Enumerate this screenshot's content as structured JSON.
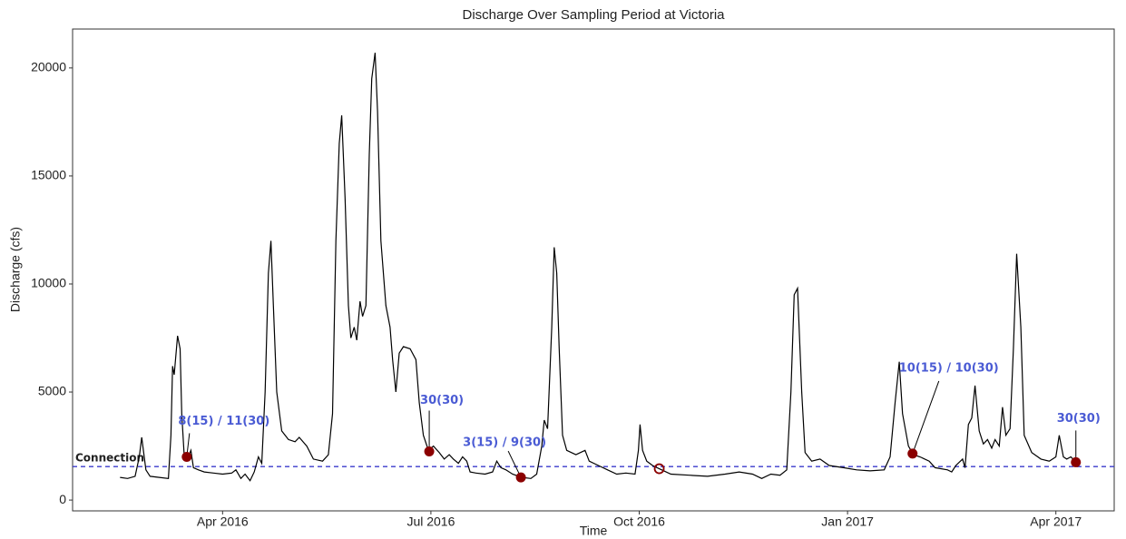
{
  "chart_data": {
    "type": "line",
    "title": "Discharge Over Sampling Period at Victoria",
    "x_label": "Time",
    "y_label": "Discharge (cfs)",
    "xlim": [
      2016.07,
      2017.32
    ],
    "ylim": [
      -500,
      21800
    ],
    "xticks": [
      {
        "value": 2016.25,
        "label": "Apr 2016"
      },
      {
        "value": 2016.5,
        "label": "Jul 2016"
      },
      {
        "value": 2016.75,
        "label": "Oct 2016"
      },
      {
        "value": 2017.0,
        "label": "Jan 2017"
      },
      {
        "value": 2017.25,
        "label": "Apr 2017"
      }
    ],
    "yticks": [
      0,
      5000,
      10000,
      15000,
      20000
    ],
    "grid": false,
    "series": [
      {
        "color": "#000000",
        "x": [
          2016.127,
          2016.136,
          2016.145,
          2016.15,
          2016.153,
          2016.158,
          2016.163,
          2016.174,
          2016.185,
          2016.188,
          2016.19,
          2016.192,
          2016.196,
          2016.199,
          2016.201,
          2016.204,
          2016.208,
          2016.212,
          2016.215,
          2016.221,
          2016.228,
          2016.239,
          2016.25,
          2016.261,
          2016.266,
          2016.272,
          2016.277,
          2016.283,
          2016.288,
          2016.293,
          2016.297,
          2016.301,
          2016.305,
          2016.308,
          2016.311,
          2016.315,
          2016.321,
          2016.329,
          2016.337,
          2016.342,
          2016.351,
          2016.359,
          2016.37,
          2016.377,
          2016.382,
          2016.386,
          2016.39,
          2016.393,
          2016.397,
          2016.401,
          2016.404,
          2016.408,
          2016.411,
          2016.415,
          2016.418,
          2016.422,
          2016.426,
          2016.429,
          2016.433,
          2016.436,
          2016.44,
          2016.446,
          2016.451,
          2016.454,
          2016.458,
          2016.462,
          2016.467,
          2016.475,
          2016.482,
          2016.486,
          2016.491,
          2016.497,
          2016.503,
          2016.51,
          2016.516,
          2016.522,
          2016.527,
          2016.533,
          2016.538,
          2016.543,
          2016.547,
          2016.554,
          2016.565,
          2016.574,
          2016.579,
          2016.584,
          2016.59,
          2016.598,
          2016.609,
          2016.62,
          2016.627,
          2016.633,
          2016.636,
          2016.64,
          2016.645,
          2016.648,
          2016.651,
          2016.654,
          2016.658,
          2016.663,
          2016.674,
          2016.685,
          2016.69,
          2016.701,
          2016.712,
          2016.723,
          2016.734,
          2016.745,
          2016.749,
          2016.751,
          2016.754,
          2016.759,
          2016.766,
          2016.774,
          2016.788,
          2016.81,
          2016.832,
          2016.853,
          2016.87,
          2016.886,
          2016.897,
          2016.908,
          2016.919,
          2016.927,
          2016.932,
          2016.936,
          2016.94,
          2016.945,
          2016.949,
          2016.957,
          2016.967,
          2016.978,
          2016.995,
          2017.011,
          2017.027,
          2017.044,
          2017.051,
          2017.057,
          2017.062,
          2017.066,
          2017.073,
          2017.079,
          2017.087,
          2017.098,
          2017.105,
          2017.12,
          2017.125,
          2017.13,
          2017.138,
          2017.141,
          2017.145,
          2017.149,
          2017.153,
          2017.158,
          2017.163,
          2017.168,
          2017.173,
          2017.177,
          2017.182,
          2017.186,
          2017.19,
          2017.195,
          2017.199,
          2017.203,
          2017.208,
          2017.212,
          2017.221,
          2017.232,
          2017.242,
          2017.25,
          2017.254,
          2017.259,
          2017.263,
          2017.268,
          2017.273,
          2017.276
        ],
        "values": [
          1050,
          1000,
          1100,
          2000,
          2900,
          1400,
          1100,
          1050,
          1000,
          3000,
          6200,
          5800,
          7600,
          7000,
          4000,
          2000,
          1900,
          2300,
          1500,
          1400,
          1300,
          1250,
          1200,
          1250,
          1400,
          1000,
          1200,
          900,
          1300,
          2000,
          1700,
          5000,
          10500,
          12000,
          9000,
          5000,
          3200,
          2800,
          2700,
          2900,
          2500,
          1900,
          1800,
          2100,
          4000,
          12000,
          16500,
          17800,
          14000,
          9000,
          7500,
          8000,
          7400,
          9200,
          8500,
          9000,
          16000,
          19500,
          20700,
          18000,
          12000,
          9000,
          8000,
          6500,
          5000,
          6800,
          7100,
          7000,
          6500,
          4500,
          3000,
          2300,
          2500,
          2200,
          1900,
          2100,
          1900,
          1700,
          2000,
          1800,
          1300,
          1250,
          1200,
          1300,
          1800,
          1500,
          1400,
          1200,
          1050,
          1000,
          1200,
          2500,
          3700,
          3300,
          8000,
          11700,
          10500,
          7000,
          3000,
          2300,
          2100,
          2300,
          1800,
          1600,
          1400,
          1200,
          1250,
          1200,
          2300,
          3500,
          2300,
          1800,
          1600,
          1450,
          1200,
          1150,
          1100,
          1200,
          1300,
          1200,
          1000,
          1200,
          1150,
          1400,
          5000,
          9500,
          9800,
          5000,
          2200,
          1800,
          1900,
          1600,
          1500,
          1400,
          1350,
          1400,
          2000,
          4500,
          6400,
          4000,
          2500,
          2100,
          2000,
          1800,
          1500,
          1400,
          1300,
          1600,
          1900,
          1500,
          3500,
          3800,
          5300,
          3200,
          2600,
          2800,
          2400,
          2800,
          2500,
          4300,
          3000,
          3300,
          7000,
          11400,
          8000,
          3000,
          2200,
          1900,
          1800,
          2000,
          3000,
          2000,
          1900,
          2000,
          1800,
          1700
        ]
      }
    ],
    "reference_line": {
      "text": "Connection",
      "value": 1550,
      "color": "#3a3acc"
    },
    "points_color": "#8b0000",
    "annotation_color": "#4a5bd4",
    "points": [
      {
        "x": 2016.207,
        "value": 2000,
        "filled": true,
        "label": "8(15) / 11(30)"
      },
      {
        "x": 2016.498,
        "value": 2250,
        "filled": true,
        "label": "30(30)"
      },
      {
        "x": 2016.608,
        "value": 1050,
        "filled": true,
        "label": "3(15) / 9(30)"
      },
      {
        "x": 2016.774,
        "value": 1450,
        "filled": false
      },
      {
        "x": 2017.078,
        "value": 2150,
        "filled": true,
        "label": "10(15) / 10(30)"
      },
      {
        "x": 2017.274,
        "value": 1750,
        "filled": true,
        "label": "30(30)"
      }
    ]
  }
}
